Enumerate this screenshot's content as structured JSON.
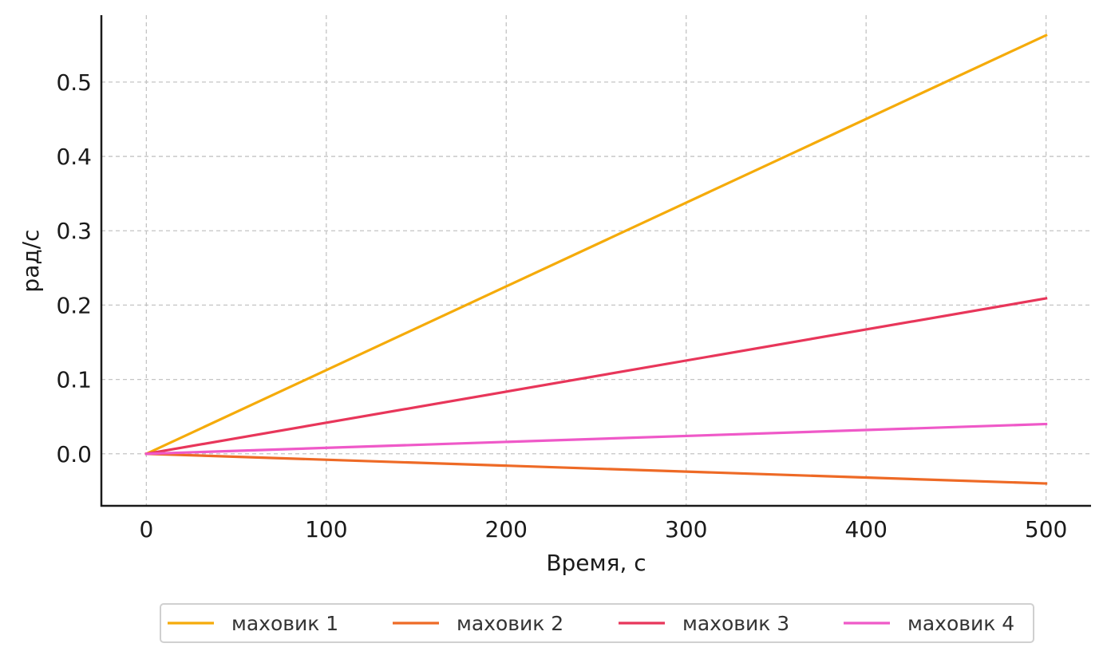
{
  "chart_data": {
    "type": "line",
    "title": "",
    "xlabel": "Время, с",
    "ylabel": "рад/с",
    "xlim": [
      -25,
      525
    ],
    "ylim": [
      -0.07,
      0.59
    ],
    "x_ticks": [
      0,
      100,
      200,
      300,
      400,
      500
    ],
    "x_tick_labels": [
      "0",
      "100",
      "200",
      "300",
      "400",
      "500"
    ],
    "y_ticks": [
      0.0,
      0.1,
      0.2,
      0.3,
      0.4,
      0.5
    ],
    "y_tick_labels": [
      "0.0",
      "0.1",
      "0.2",
      "0.3",
      "0.4",
      "0.5"
    ],
    "grid": true,
    "legend_position": "bottom-center",
    "x": [
      0,
      500
    ],
    "series": [
      {
        "name": "маховик 1",
        "color": "#f5ab0a",
        "values": [
          0.0,
          0.563
        ]
      },
      {
        "name": "маховик 2",
        "color": "#ee6a26",
        "values": [
          0.0,
          -0.04
        ]
      },
      {
        "name": "маховик 3",
        "color": "#e8365a",
        "values": [
          0.0,
          0.209
        ]
      },
      {
        "name": "маховик 4",
        "color": "#ef59c8",
        "values": [
          0.0,
          0.04
        ]
      }
    ]
  }
}
